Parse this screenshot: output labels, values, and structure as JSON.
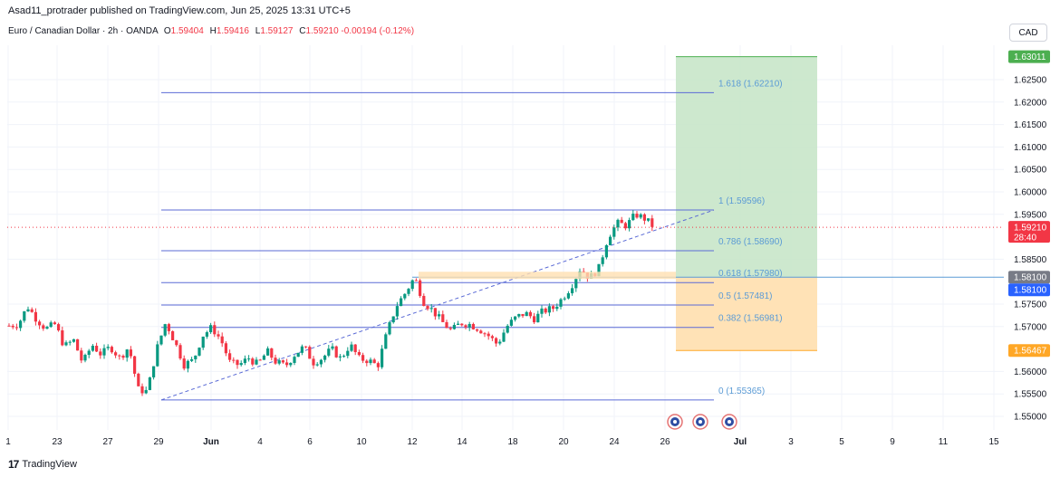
{
  "header": {
    "publisher": "Asad11_protrader published on TradingView.com, Jun 25, 2025 13:31 UTC+5"
  },
  "legend": {
    "symbol": "Euro / Canadian Dollar · 2h · OANDA",
    "o_label": "O",
    "o_val": "1.59404",
    "h_label": "H",
    "h_val": "1.59416",
    "l_label": "L",
    "l_val": "1.59127",
    "c_label": "C",
    "c_val": "1.59210",
    "change": "-0.00194 (-0.12%)"
  },
  "currency_badge": "CAD",
  "footer": {
    "logo_text": "TradingView"
  },
  "chart_data": {
    "type": "candlestick",
    "symbol": "EURCAD",
    "interval": "2h",
    "x_ticks": [
      "1",
      "23",
      "27",
      "29",
      "Jun",
      "4",
      "6",
      "10",
      "12",
      "14",
      "18",
      "20",
      "24",
      "26",
      "Jul",
      "3",
      "5",
      "9",
      "11",
      "15"
    ],
    "y_ticks": [
      "1.62500",
      "1.62000",
      "1.61500",
      "1.61000",
      "1.60500",
      "1.60000",
      "1.59500",
      "1.58500",
      "1.57500",
      "1.57000",
      "1.56000",
      "1.55500",
      "1.55000"
    ],
    "ylim": [
      1.5485,
      1.6335
    ],
    "price_path": [
      [
        0,
        1.5702
      ],
      [
        1,
        1.5705
      ],
      [
        2,
        1.5745
      ],
      [
        3,
        1.5716
      ],
      [
        4,
        1.5695
      ],
      [
        5,
        1.5705
      ],
      [
        6,
        1.5655
      ],
      [
        7,
        1.567
      ],
      [
        8,
        1.5618
      ],
      [
        9,
        1.566
      ],
      [
        10,
        1.5638
      ],
      [
        11,
        1.5655
      ],
      [
        12,
        1.563
      ],
      [
        13,
        1.5655
      ],
      [
        14,
        1.556
      ],
      [
        15,
        1.5555
      ],
      [
        16,
        1.5648
      ],
      [
        17,
        1.571
      ],
      [
        18,
        1.5665
      ],
      [
        19,
        1.5615
      ],
      [
        20,
        1.5625
      ],
      [
        21,
        1.568
      ],
      [
        22,
        1.5698
      ],
      [
        23,
        1.567
      ],
      [
        24,
        1.5618
      ],
      [
        25,
        1.5615
      ],
      [
        26,
        1.563
      ],
      [
        27,
        1.5615
      ],
      [
        28,
        1.5645
      ],
      [
        29,
        1.562
      ],
      [
        30,
        1.5612
      ],
      [
        31,
        1.5638
      ],
      [
        32,
        1.5655
      ],
      [
        33,
        1.562
      ],
      [
        34,
        1.563
      ],
      [
        35,
        1.565
      ],
      [
        36,
        1.5628
      ],
      [
        37,
        1.566
      ],
      [
        38,
        1.5628
      ],
      [
        39,
        1.5625
      ],
      [
        40,
        1.5612
      ],
      [
        41,
        1.5685
      ],
      [
        42,
        1.5745
      ],
      [
        43,
        1.5775
      ],
      [
        44,
        1.581
      ],
      [
        45,
        1.5755
      ],
      [
        46,
        1.5735
      ],
      [
        47,
        1.571
      ],
      [
        48,
        1.569
      ],
      [
        49,
        1.5708
      ],
      [
        50,
        1.5705
      ],
      [
        51,
        1.5695
      ],
      [
        52,
        1.568
      ],
      [
        53,
        1.566
      ],
      [
        54,
        1.57
      ],
      [
        55,
        1.572
      ],
      [
        56,
        1.573
      ],
      [
        57,
        1.5718
      ],
      [
        58,
        1.5735
      ],
      [
        59,
        1.574
      ],
      [
        60,
        1.5762
      ],
      [
        61,
        1.579
      ],
      [
        62,
        1.583
      ],
      [
        63,
        1.5808
      ],
      [
        64,
        1.583
      ],
      [
        65,
        1.59
      ],
      [
        66,
        1.593
      ],
      [
        67,
        1.5925
      ],
      [
        68,
        1.595
      ],
      [
        69,
        1.594
      ],
      [
        70,
        1.5921
      ]
    ],
    "fibonacci": {
      "levels": [
        {
          "label": "1.618 (1.62210)",
          "ratio": 1.618,
          "price": 1.6221
        },
        {
          "label": "1 (1.59596)",
          "ratio": 1,
          "price": 1.59596
        },
        {
          "label": "0.786 (1.58690)",
          "ratio": 0.786,
          "price": 1.5869
        },
        {
          "label": "0.618 (1.57980)",
          "ratio": 0.618,
          "price": 1.5798
        },
        {
          "label": "0.5 (1.57481)",
          "ratio": 0.5,
          "price": 1.57481
        },
        {
          "label": "0.382 (1.56981)",
          "ratio": 0.382,
          "price": 1.56981
        },
        {
          "label": "0 (1.55365)",
          "ratio": 0,
          "price": 1.55365
        }
      ]
    },
    "position": {
      "entry": 1.581,
      "target": 1.63011,
      "stop": 1.56467
    },
    "last_price": 1.5921,
    "countdown": "28:40",
    "price_labels": [
      "1.63011",
      "1.59210",
      "1.58100",
      "1.58100",
      "1.56467"
    ],
    "colors": {
      "up": "#089981",
      "down": "#f23645",
      "fib_line": "#5b6bd6",
      "fib_text": "#5b9bd5",
      "target_fill": "#c8e6c9",
      "target_label": "#4caf50",
      "stop_fill": "#ffe0b2",
      "stop_label": "#ffa726",
      "entry_label": "#2962ff",
      "entry_line_label": "#787b86"
    }
  }
}
